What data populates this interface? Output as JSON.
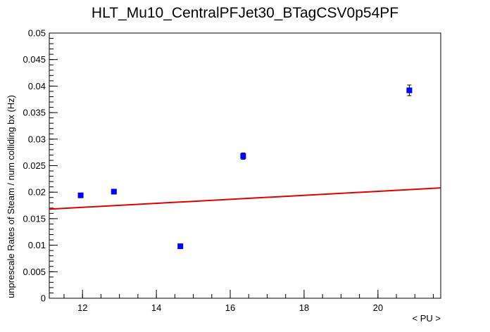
{
  "chart_data": {
    "type": "scatter",
    "title": "HLT_Mu10_CentralPFJet30_BTagCSV0p54PF",
    "xlabel": "< PU >",
    "ylabel": "unprescale Rates of Steam / num colliding bx (Hz)",
    "xlim": [
      11.1,
      21.7
    ],
    "ylim": [
      0,
      0.05
    ],
    "x_ticks": [
      12,
      14,
      16,
      18,
      20
    ],
    "x_tick_labels": [
      "12",
      "14",
      "16",
      "18",
      "20"
    ],
    "y_ticks": [
      0,
      0.005,
      0.01,
      0.015,
      0.02,
      0.025,
      0.03,
      0.035,
      0.04,
      0.045,
      0.05
    ],
    "y_tick_labels": [
      "0",
      "0.005",
      "0.01",
      "0.015",
      "0.02",
      "0.025",
      "0.03",
      "0.035",
      "0.04",
      "0.045",
      "0.05"
    ],
    "grid": false,
    "legend": "none",
    "series": [
      {
        "points": [
          {
            "x": 11.95,
            "y": 0.0194,
            "yerr": 0.0003
          },
          {
            "x": 12.85,
            "y": 0.0201,
            "yerr": 0.0003
          },
          {
            "x": 14.65,
            "y": 0.0098,
            "yerr": 0.0002
          },
          {
            "x": 16.35,
            "y": 0.0268,
            "yerr": 0.0006
          },
          {
            "x": 20.85,
            "y": 0.0392,
            "yerr": 0.001
          }
        ],
        "color": "#0000ff",
        "marker": "square"
      }
    ],
    "fit_line": {
      "x": [
        11.1,
        21.7
      ],
      "y": [
        0.0168,
        0.0208
      ],
      "color": "#e00000"
    }
  }
}
